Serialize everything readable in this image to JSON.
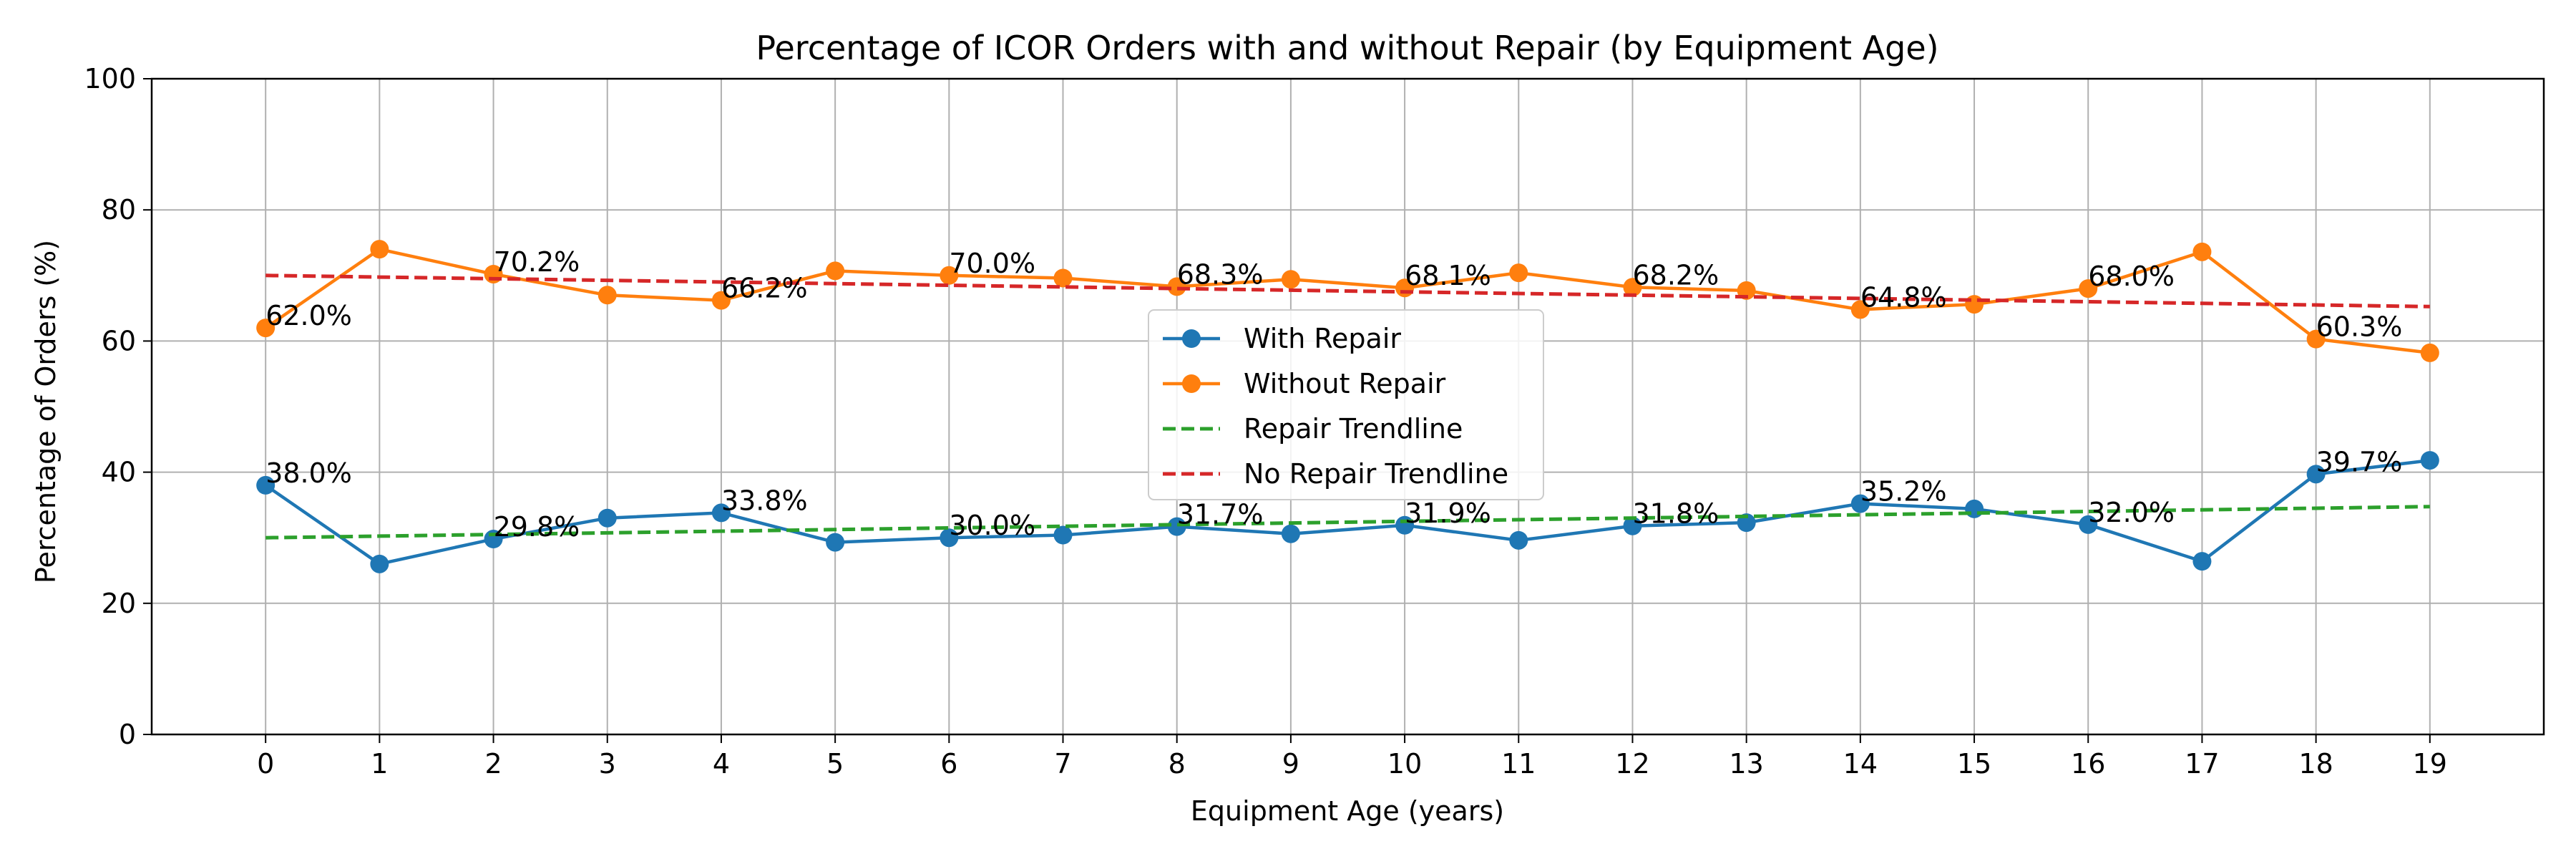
{
  "chart_data": {
    "type": "line",
    "title": "Percentage of ICOR Orders with and without Repair (by Equipment Age)",
    "xlabel": "Equipment Age (years)",
    "ylabel": "Percentage of Orders (%)",
    "x": [
      0,
      1,
      2,
      3,
      4,
      5,
      6,
      7,
      8,
      9,
      10,
      11,
      12,
      13,
      14,
      15,
      16,
      17,
      18,
      19
    ],
    "xlim": [
      -1,
      20
    ],
    "ylim": [
      0,
      100
    ],
    "yticks": [
      0,
      20,
      40,
      60,
      80,
      100
    ],
    "grid": true,
    "legend_position": "center",
    "series": [
      {
        "name": "With Repair",
        "style": "line-marker",
        "color": "#1f77b4",
        "values": [
          38.0,
          26.0,
          29.8,
          33.0,
          33.8,
          29.3,
          30.0,
          30.4,
          31.7,
          30.6,
          31.9,
          29.6,
          31.8,
          32.3,
          35.2,
          34.4,
          32.0,
          26.4,
          39.7,
          41.8
        ]
      },
      {
        "name": "Without Repair",
        "style": "line-marker",
        "color": "#ff7f0e",
        "values": [
          62.0,
          74.0,
          70.2,
          67.0,
          66.2,
          70.7,
          70.0,
          69.6,
          68.3,
          69.4,
          68.1,
          70.4,
          68.2,
          67.7,
          64.8,
          65.6,
          68.0,
          73.6,
          60.3,
          58.2
        ]
      },
      {
        "name": "Repair Trendline",
        "style": "dashed",
        "color": "#2ca02c",
        "values": [
          30.0,
          30.25,
          30.5,
          30.75,
          31.0,
          31.25,
          31.5,
          31.75,
          32.0,
          32.25,
          32.5,
          32.75,
          33.0,
          33.25,
          33.5,
          33.75,
          34.0,
          34.25,
          34.5,
          34.75
        ]
      },
      {
        "name": "No Repair Trendline",
        "style": "dashed",
        "color": "#d62728",
        "values": [
          70.0,
          69.75,
          69.5,
          69.25,
          69.0,
          68.75,
          68.5,
          68.25,
          68.0,
          67.75,
          67.5,
          67.25,
          67.0,
          66.75,
          66.5,
          66.25,
          66.0,
          65.75,
          65.5,
          65.25
        ]
      }
    ],
    "annotations": [
      {
        "series": 0,
        "x": 0,
        "text": "38.0%"
      },
      {
        "series": 0,
        "x": 2,
        "text": "29.8%"
      },
      {
        "series": 0,
        "x": 4,
        "text": "33.8%"
      },
      {
        "series": 0,
        "x": 6,
        "text": "30.0%"
      },
      {
        "series": 0,
        "x": 8,
        "text": "31.7%"
      },
      {
        "series": 0,
        "x": 10,
        "text": "31.9%"
      },
      {
        "series": 0,
        "x": 12,
        "text": "31.8%"
      },
      {
        "series": 0,
        "x": 14,
        "text": "35.2%"
      },
      {
        "series": 0,
        "x": 16,
        "text": "32.0%"
      },
      {
        "series": 0,
        "x": 18,
        "text": "39.7%"
      },
      {
        "series": 1,
        "x": 0,
        "text": "62.0%"
      },
      {
        "series": 1,
        "x": 2,
        "text": "70.2%"
      },
      {
        "series": 1,
        "x": 4,
        "text": "66.2%"
      },
      {
        "series": 1,
        "x": 6,
        "text": "70.0%"
      },
      {
        "series": 1,
        "x": 8,
        "text": "68.3%"
      },
      {
        "series": 1,
        "x": 10,
        "text": "68.1%"
      },
      {
        "series": 1,
        "x": 12,
        "text": "68.2%"
      },
      {
        "series": 1,
        "x": 14,
        "text": "64.8%"
      },
      {
        "series": 1,
        "x": 16,
        "text": "68.0%"
      },
      {
        "series": 1,
        "x": 18,
        "text": "60.3%"
      }
    ]
  }
}
